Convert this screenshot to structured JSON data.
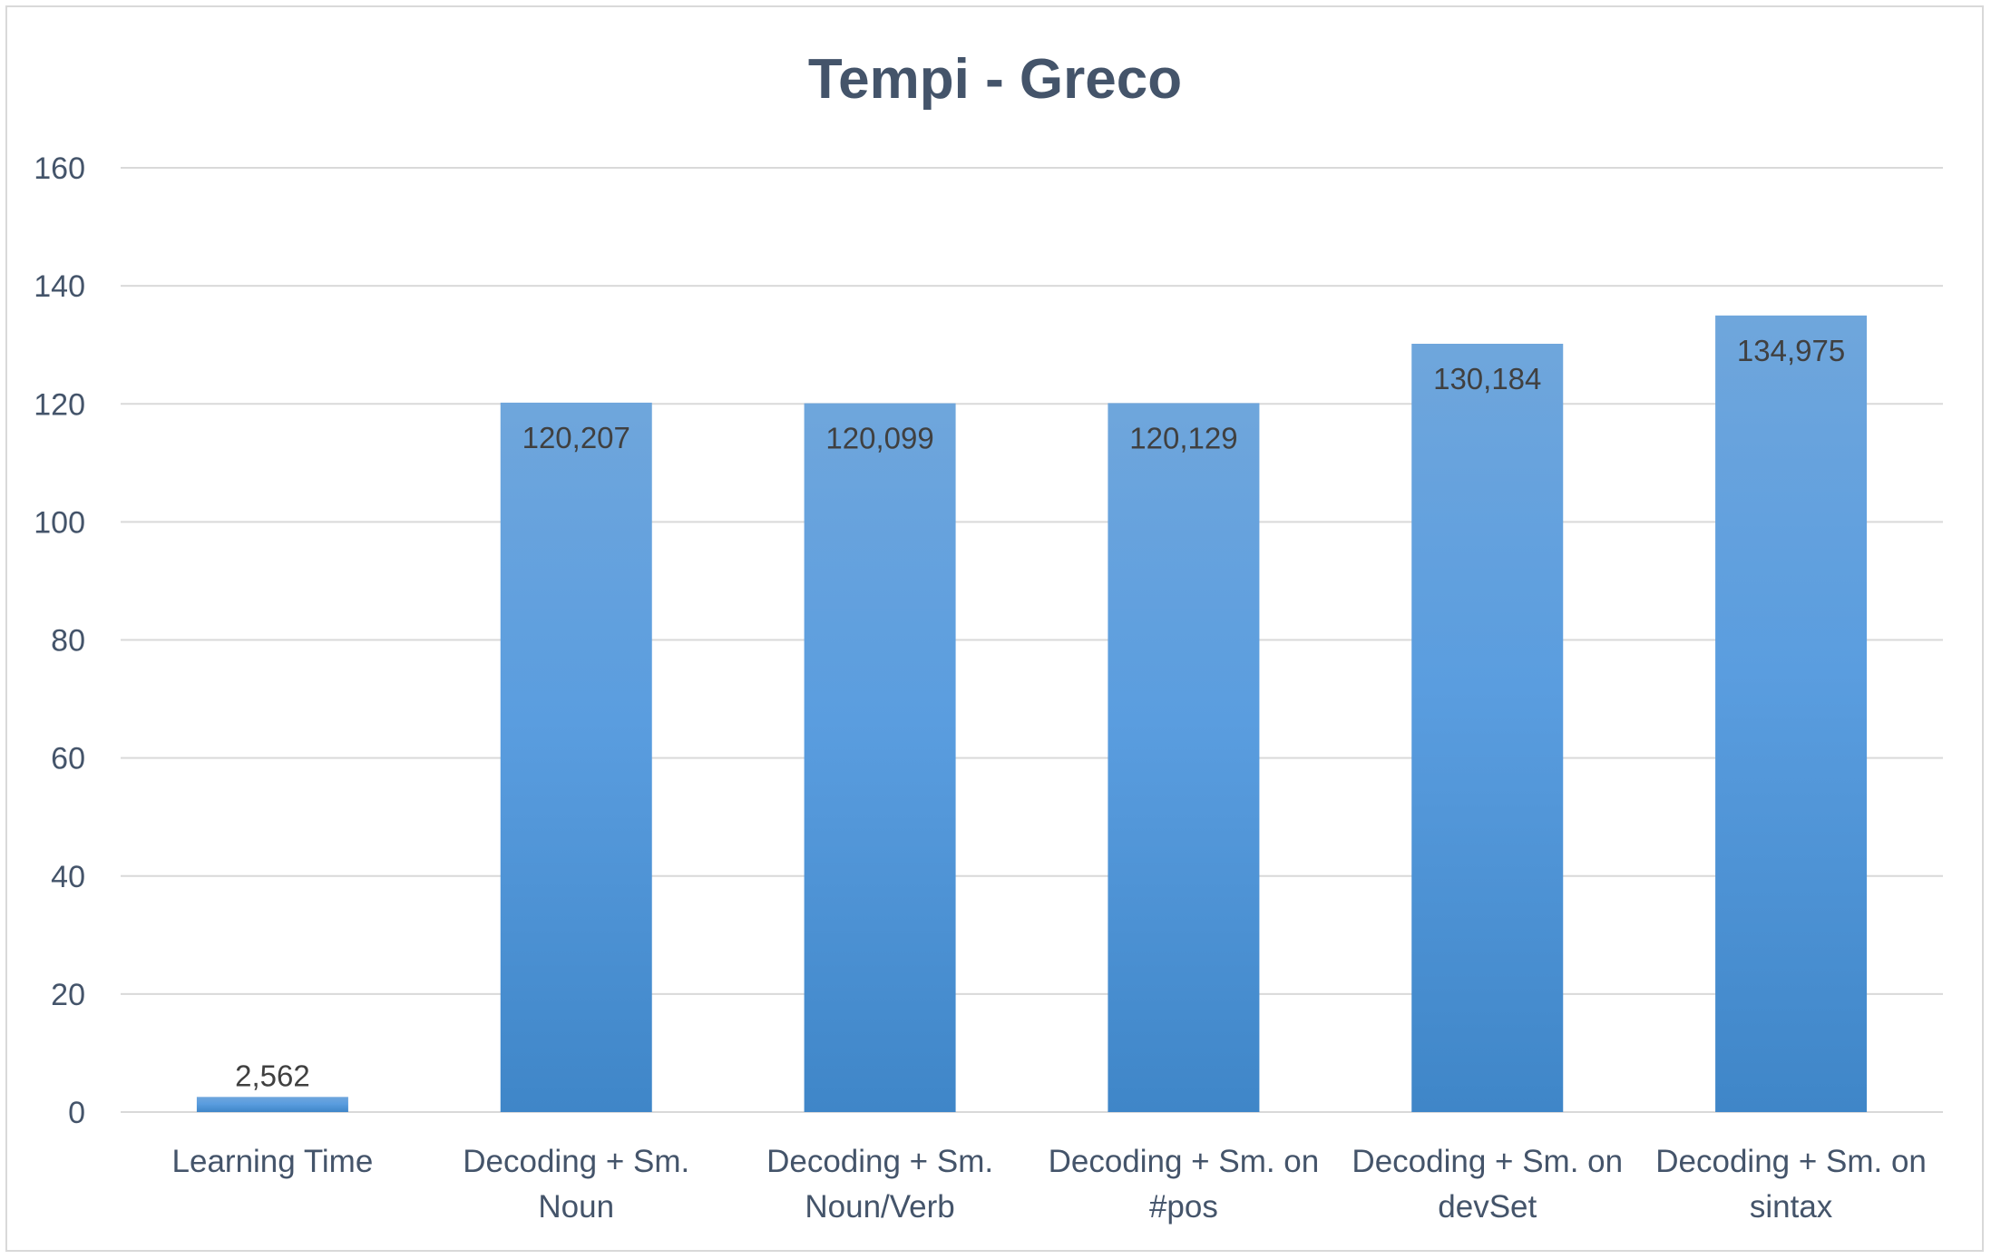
{
  "chart_data": {
    "type": "bar",
    "title": "Tempi - Greco",
    "xlabel": "",
    "ylabel": "",
    "categories": [
      [
        "Learning Time"
      ],
      [
        "Decoding + Sm.",
        "Noun"
      ],
      [
        "Decoding + Sm.",
        "Noun/Verb"
      ],
      [
        "Decoding + Sm. on",
        "#pos"
      ],
      [
        "Decoding + Sm. on",
        "devSet"
      ],
      [
        "Decoding + Sm. on",
        "sintax"
      ]
    ],
    "values": [
      2.562,
      120.207,
      120.099,
      120.129,
      130.184,
      134.975
    ],
    "data_labels": [
      "2,562",
      "120,207",
      "120,099",
      "120,129",
      "130,184",
      "134,975"
    ],
    "ylim": [
      0,
      160
    ],
    "yticks": [
      0,
      20,
      40,
      60,
      80,
      100,
      120,
      140,
      160
    ],
    "grid": true,
    "legend": "none",
    "colors": {
      "bar_top": "#6fa6dc",
      "bar_bottom": "#3f86c8",
      "grid": "#d9d9d9",
      "text": "#44546a"
    }
  }
}
